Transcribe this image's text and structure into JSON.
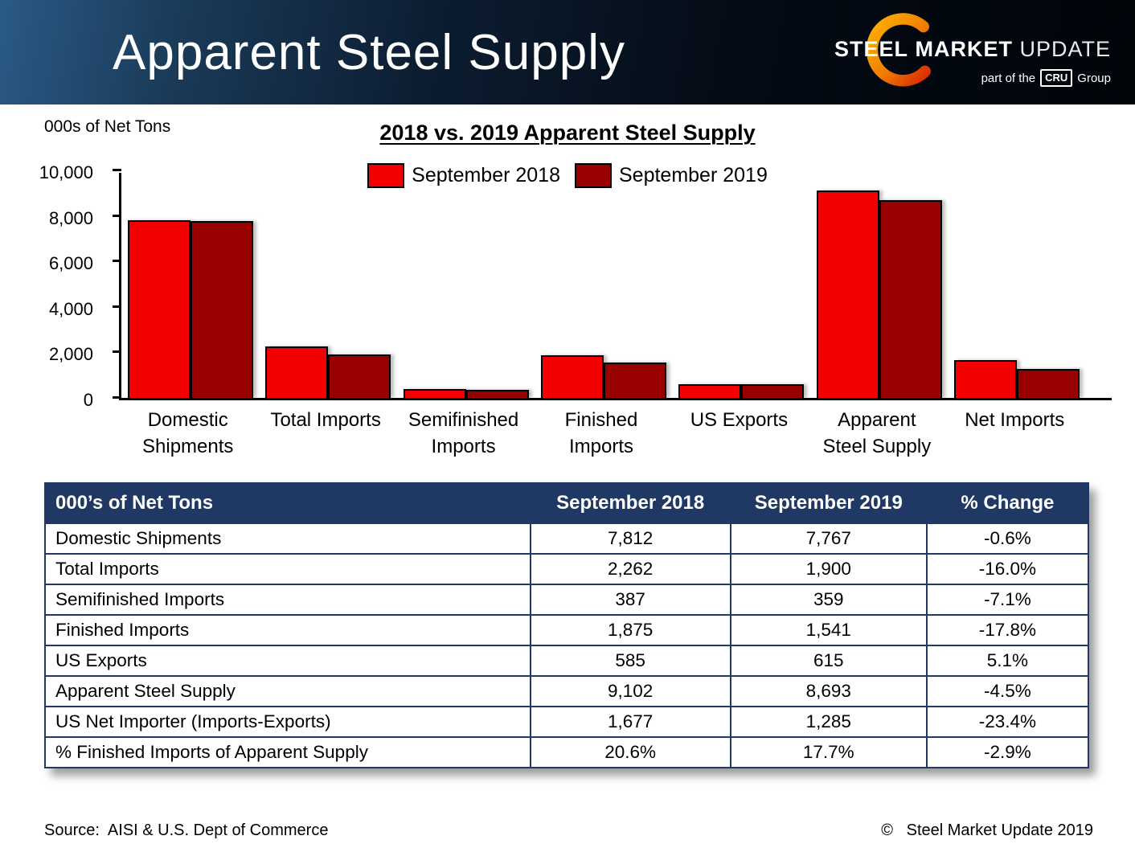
{
  "colors": {
    "navy": "#1F3864"
  },
  "header": {
    "title": "Apparent Steel Supply",
    "logo": {
      "steel": "STEEL",
      "market": "MARKET",
      "update": "UPDATE",
      "tagline_prefix": "part of the",
      "cru": "CRU",
      "tagline_suffix": "Group"
    }
  },
  "chart_data": {
    "type": "bar",
    "title": "2018 vs. 2019 Apparent Steel Supply",
    "unit": "000s of Net Tons",
    "categories": [
      "Domestic\nShipments",
      "Total Imports",
      "Semifinished\nImports",
      "Finished\nImports",
      "US Exports",
      "Apparent\nSteel Supply",
      "Net Imports"
    ],
    "series": [
      {
        "name": "September 2018",
        "color": "#F40000",
        "values": [
          7812,
          2262,
          387,
          1875,
          585,
          9102,
          1677
        ]
      },
      {
        "name": "September 2019",
        "color": "#990000",
        "values": [
          7767,
          1900,
          359,
          1541,
          615,
          8693,
          1285
        ]
      }
    ],
    "ylim": [
      0,
      10000
    ],
    "yticks": [
      0,
      2000,
      4000,
      6000,
      8000,
      10000
    ],
    "ytick_labels": [
      "0",
      "2,000",
      "4,000",
      "6,000",
      "8,000",
      "10,000"
    ],
    "legend_position": "top",
    "grid": false
  },
  "table": {
    "columns": [
      "000’s of Net Tons",
      "September 2018",
      "September 2019",
      "% Change"
    ],
    "rows": [
      [
        "Domestic Shipments",
        "7,812",
        "7,767",
        "-0.6%"
      ],
      [
        "Total Imports",
        "2,262",
        "1,900",
        "-16.0%"
      ],
      [
        "Semifinished Imports",
        "387",
        "359",
        "-7.1%"
      ],
      [
        "Finished Imports",
        "1,875",
        "1,541",
        "-17.8%"
      ],
      [
        "US Exports",
        "585",
        "615",
        "5.1%"
      ],
      [
        "Apparent Steel Supply",
        "9,102",
        "8,693",
        "-4.5%"
      ],
      [
        "US Net Importer (Imports-Exports)",
        "1,677",
        "1,285",
        "-23.4%"
      ],
      [
        "% Finished Imports of Apparent Supply",
        "20.6%",
        "17.7%",
        "-2.9%"
      ]
    ]
  },
  "footer": {
    "source": "Source:  AISI & U.S. Dept of Commerce",
    "copyright": "©   Steel Market Update 2019"
  }
}
